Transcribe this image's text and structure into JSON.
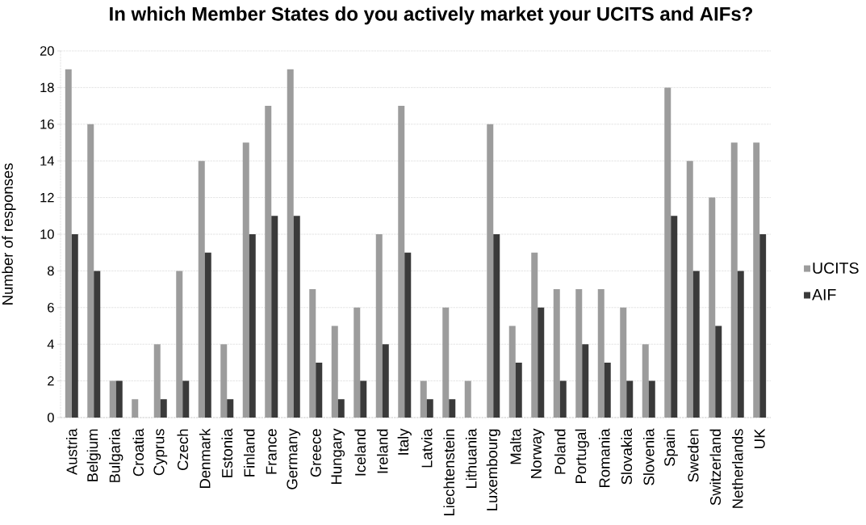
{
  "chart_data": {
    "type": "bar",
    "title": "In which Member States do you actively market your UCITS and AIFs?",
    "ylabel": "Number of responses",
    "categories": [
      "Austria",
      "Belgium",
      "Bulgaria",
      "Croatia",
      "Cyprus",
      "Czech",
      "Denmark",
      "Estonia",
      "Finland",
      "France",
      "Germany",
      "Greece",
      "Hungary",
      "Iceland",
      "Ireland",
      "Italy",
      "Latvia",
      "Liechtenstein",
      "Lithuania",
      "Luxembourg",
      "Malta",
      "Norway",
      "Poland",
      "Portugal",
      "Romania",
      "Slovakia",
      "Slovenia",
      "Spain",
      "Sweden",
      "Switzerland",
      "Netherlands",
      "UK"
    ],
    "series": [
      {
        "name": "UCITS",
        "color": "#9c9c9c",
        "values": [
          19,
          16,
          2,
          1,
          4,
          8,
          14,
          4,
          15,
          17,
          19,
          7,
          5,
          6,
          10,
          17,
          2,
          6,
          2,
          16,
          5,
          9,
          7,
          7,
          7,
          6,
          4,
          18,
          14,
          12,
          15,
          15
        ]
      },
      {
        "name": "AIF",
        "color": "#3a3a3a",
        "values": [
          10,
          8,
          2,
          0,
          1,
          2,
          9,
          1,
          10,
          11,
          11,
          3,
          1,
          2,
          4,
          9,
          1,
          1,
          0,
          10,
          3,
          6,
          2,
          4,
          3,
          2,
          2,
          11,
          8,
          5,
          8,
          10
        ]
      }
    ],
    "ylim": [
      0,
      20
    ],
    "yticks": [
      0,
      2,
      4,
      6,
      8,
      10,
      12,
      14,
      16,
      18,
      20
    ],
    "grid": "y",
    "legend": "right"
  }
}
